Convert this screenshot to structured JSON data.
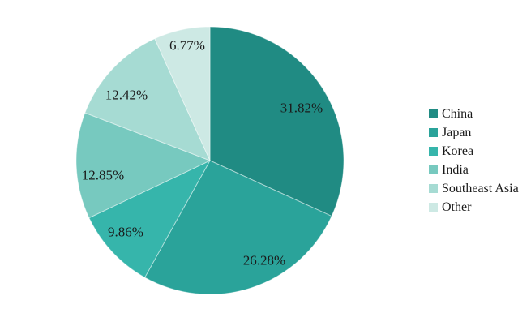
{
  "figure": {
    "background": "#ffffff"
  },
  "chart_data": {
    "type": "pie",
    "title": "",
    "categories": [
      "China",
      "Japan",
      "Korea",
      "India",
      "Southeast Asia",
      "Other"
    ],
    "values": [
      31.82,
      26.28,
      9.86,
      12.85,
      12.42,
      6.77
    ],
    "slices": [
      {
        "name": "China",
        "value": 31.82,
        "label": "31.82%",
        "color": "#208b83"
      },
      {
        "name": "Japan",
        "value": 26.28,
        "label": "26.28%",
        "color": "#2aa39a"
      },
      {
        "name": "Korea",
        "value": 9.86,
        "label": "9.86%",
        "color": "#36b5ab"
      },
      {
        "name": "India",
        "value": 12.85,
        "label": "12.85%",
        "color": "#77c9bf"
      },
      {
        "name": "Southeast Asia",
        "value": 12.42,
        "label": "12.42%",
        "color": "#a6dbd3"
      },
      {
        "name": "Other",
        "value": 6.77,
        "label": "6.77%",
        "color": "#cde9e4"
      }
    ],
    "start_angle": "12 o'clock",
    "direction": "clockwise",
    "legend_position": "right",
    "label_format": "percent-inside",
    "label_text_color": "#1a1a1a",
    "grid": false
  }
}
